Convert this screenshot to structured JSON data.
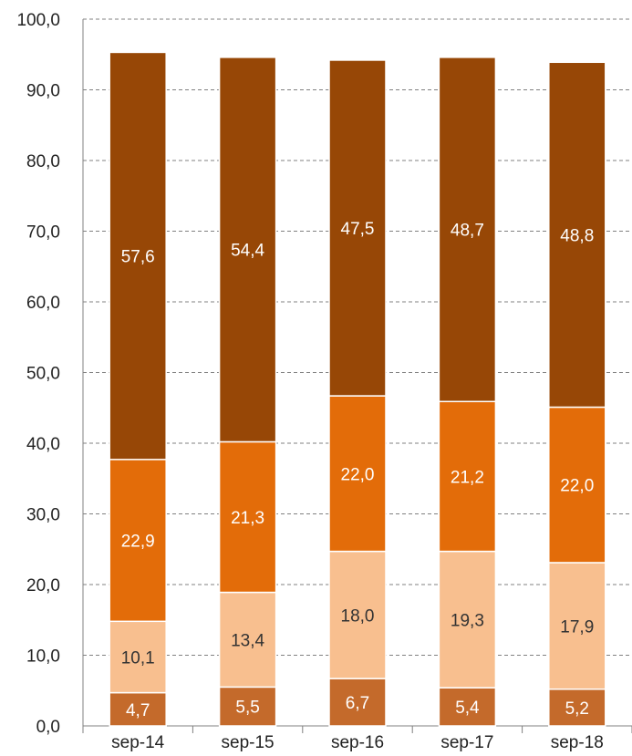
{
  "chart_data": {
    "type": "bar",
    "stacked": true,
    "categories": [
      "sep-14",
      "sep-15",
      "sep-16",
      "sep-17",
      "sep-18"
    ],
    "series": [
      {
        "values": [
          4.7,
          5.5,
          6.7,
          5.4,
          5.2
        ],
        "color": "#c46a2b",
        "label_color": "#ffffff"
      },
      {
        "values": [
          10.1,
          13.4,
          18.0,
          19.3,
          17.9
        ],
        "color": "#f8bf8f",
        "label_color": "#333333"
      },
      {
        "values": [
          22.9,
          21.3,
          22.0,
          21.2,
          22.0
        ],
        "color": "#e36c09",
        "label_color": "#ffffff"
      },
      {
        "values": [
          57.6,
          54.4,
          47.5,
          48.7,
          48.8
        ],
        "color": "#974706",
        "label_color": "#ffffff"
      }
    ],
    "data_labels": [
      [
        "4,7",
        "5,5",
        "6,7",
        "5,4",
        "5,2"
      ],
      [
        "10,1",
        "13,4",
        "18,0",
        "19,3",
        "17,9"
      ],
      [
        "22,9",
        "21,3",
        "22,0",
        "21,2",
        "22,0"
      ],
      [
        "57,6",
        "54,4",
        "47,5",
        "48,7",
        "48,8"
      ]
    ],
    "y_ticks": [
      0,
      10,
      20,
      30,
      40,
      50,
      60,
      70,
      80,
      90,
      100
    ],
    "y_tick_labels": [
      "0,0",
      "10,0",
      "20,0",
      "30,0",
      "40,0",
      "50,0",
      "60,0",
      "70,0",
      "80,0",
      "90,0",
      "100,0"
    ],
    "ylim": [
      0,
      100
    ],
    "grid": true,
    "grid_style": "dashed",
    "legend": "none",
    "title": "",
    "xlabel": "",
    "ylabel": ""
  }
}
